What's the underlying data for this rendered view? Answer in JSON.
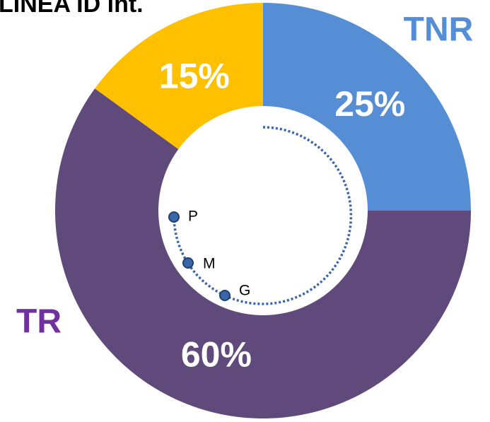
{
  "chart_data": {
    "type": "pie",
    "title": "LINEA ID int.",
    "categories": [
      "TNR",
      "TR",
      null
    ],
    "values": [
      25,
      60,
      15
    ],
    "value_labels": [
      "25%",
      "60%",
      "15%"
    ],
    "colors": [
      "#558ed5",
      "#604a7b",
      "#ffc000"
    ],
    "label_colors": [
      "#558ed5",
      "#7030a0",
      null
    ],
    "annotations": [
      "P",
      "M",
      "G"
    ]
  }
}
